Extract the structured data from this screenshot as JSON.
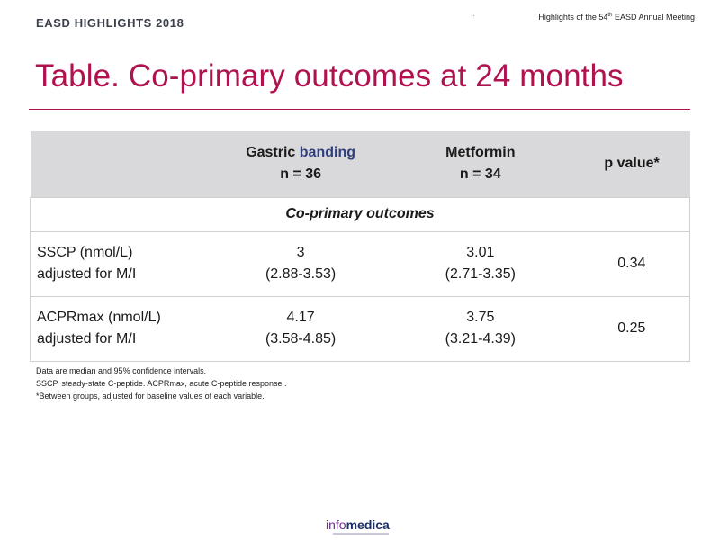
{
  "header": {
    "brand": "EASD HIGHLIGHTS 2018",
    "meeting_prefix": "Highlights of the 54",
    "meeting_sup": "th",
    "meeting_suffix": " EASD Annual Meeting"
  },
  "title": "Table. Co-primary outcomes at 24 months",
  "table": {
    "col1_a": "Gastric ",
    "col1_b": "banding",
    "col1_n": "n = 36",
    "col2": "Metformin",
    "col2_n": "n = 34",
    "col3": "p value*",
    "section": "Co-primary outcomes",
    "rows": [
      {
        "label1": "SSCP (nmol/L)",
        "label2": "adjusted for M/I",
        "gb": "3",
        "gb_ci": "(2.88-3.53)",
        "met": "3.01",
        "met_ci": "(2.71-3.35)",
        "p": "0.34"
      },
      {
        "label1": "ACPRmax (nmol/L)",
        "label2": "adjusted for M/I",
        "gb": "4.17",
        "gb_ci": "(3.58-4.85)",
        "met": "3.75",
        "met_ci": "(3.21-4.39)",
        "p": "0.25"
      }
    ]
  },
  "footnotes": [
    "Data are median and 95% confidence intervals.",
    "SSCP, steady-state C-peptide. ACPRmax, acute C-peptide response .",
    "*Between groups, adjusted for baseline values of each variable."
  ],
  "logo": {
    "part1": "info",
    "part2": "medica"
  }
}
